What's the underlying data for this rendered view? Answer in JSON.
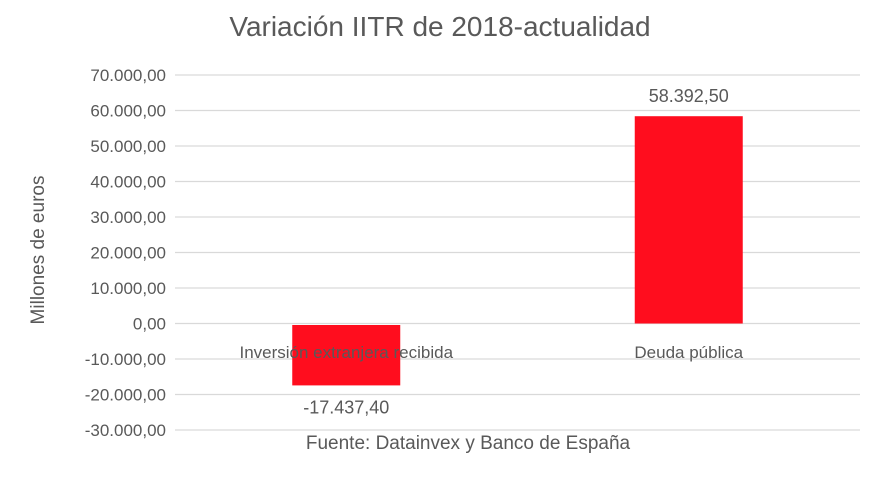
{
  "chart_data": {
    "type": "bar",
    "title": "Variación IITR de 2018-actualidad",
    "ylabel": "Millones de euros",
    "xlabel": "",
    "note": "Fuente: Datainvex y Banco de España",
    "categories": [
      "Inversión extranjera recibida",
      "Deuda pública"
    ],
    "values": [
      -17437.4,
      58392.5
    ],
    "data_labels": [
      "-17.437,40",
      "58.392,50"
    ],
    "ylim": [
      -30000,
      70000
    ],
    "yticks": [
      70000,
      60000,
      50000,
      40000,
      30000,
      20000,
      10000,
      0,
      -10000,
      -20000,
      -30000
    ],
    "ytick_labels": [
      "70.000,00",
      "60.000,00",
      "50.000,00",
      "40.000,00",
      "30.000,00",
      "20.000,00",
      "10.000,00",
      "0,00",
      "-10.000,00",
      "-20.000,00",
      "-30.000,00"
    ],
    "grid": true,
    "legend": "none",
    "colors": {
      "bar": "#FF0D1E",
      "grid": "#D9D9D9",
      "text": "#595959"
    }
  }
}
